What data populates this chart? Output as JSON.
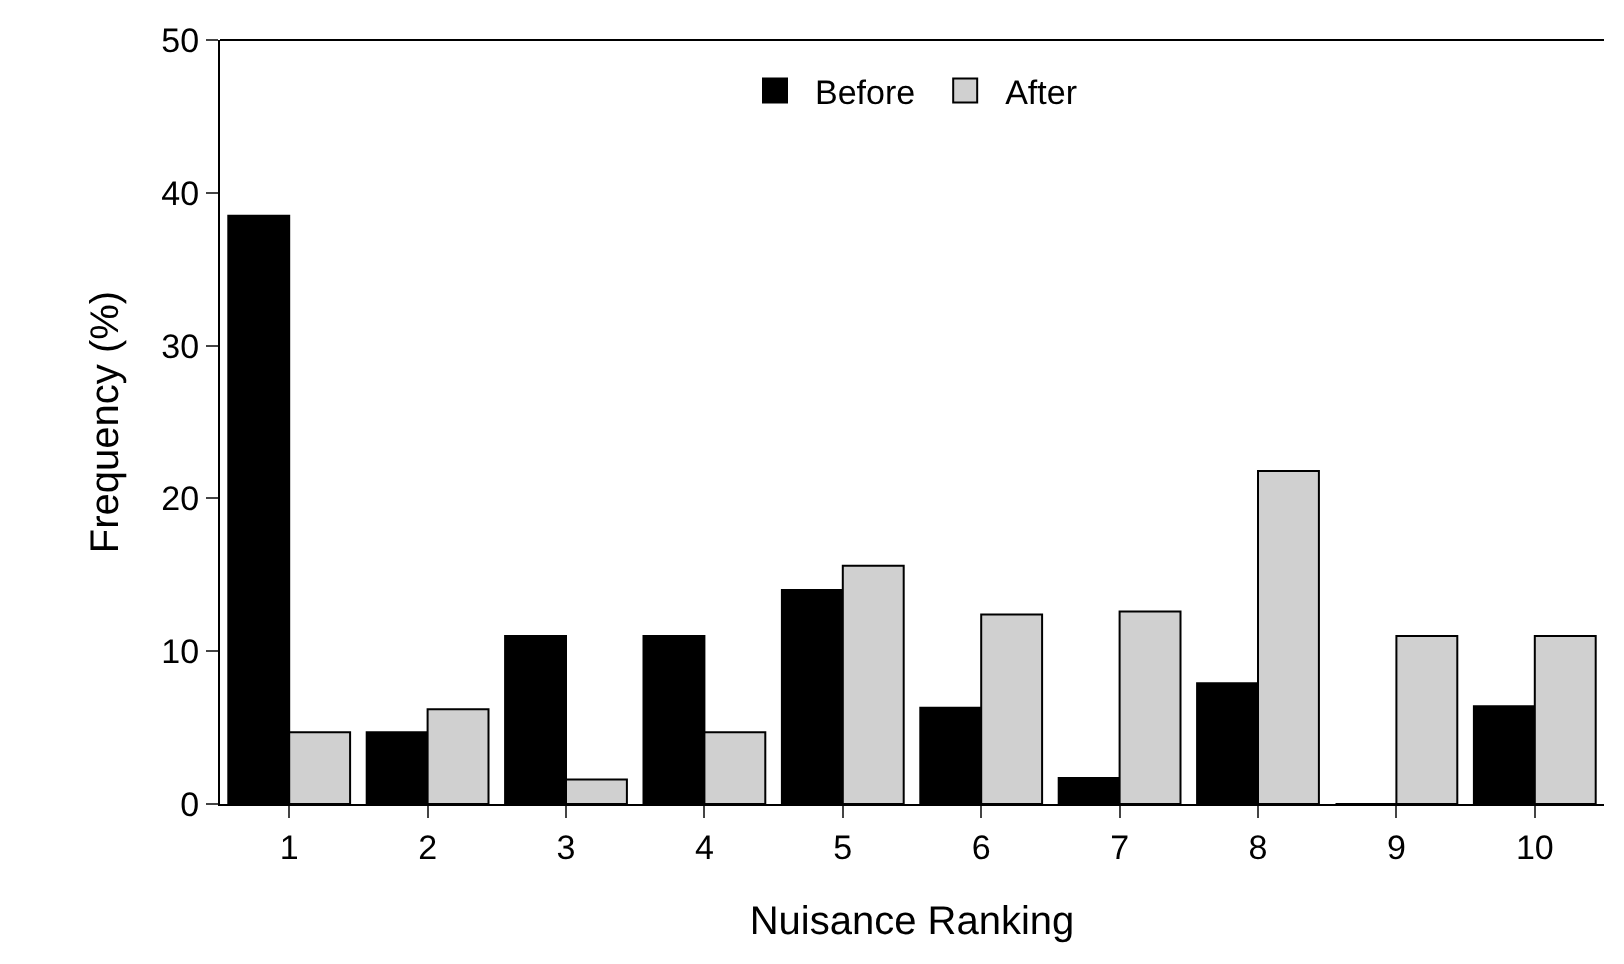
{
  "chart_data": {
    "type": "bar",
    "xlabel": "Nuisance Ranking",
    "ylabel": "Frequency (%)",
    "categories": [
      "1",
      "2",
      "3",
      "4",
      "5",
      "6",
      "7",
      "8",
      "9",
      "10"
    ],
    "series": [
      {
        "name": "Before",
        "color": "#000000",
        "values": [
          38.5,
          4.7,
          11.0,
          11.0,
          14.0,
          6.3,
          1.7,
          7.9,
          0,
          6.4
        ]
      },
      {
        "name": "After",
        "color": "#d0d0d0",
        "values": [
          4.7,
          6.2,
          1.6,
          4.7,
          15.6,
          12.4,
          12.6,
          21.8,
          11.0,
          11.0
        ]
      }
    ],
    "ylim": [
      0,
      50
    ],
    "yticks": [
      0,
      10,
      20,
      30,
      40,
      50
    ],
    "legend": "top"
  }
}
